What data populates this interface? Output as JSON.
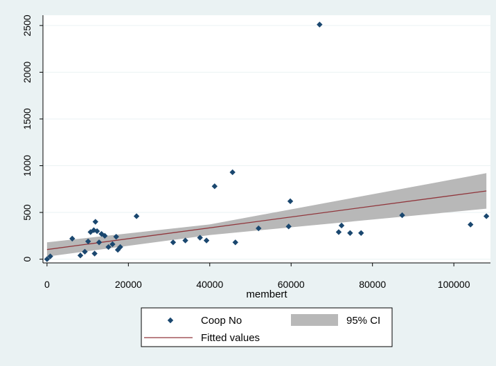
{
  "chart_data": {
    "type": "scatter",
    "title": "",
    "xlabel": "membert",
    "ylabel": "",
    "xlim": [
      -1000,
      109000
    ],
    "ylim": [
      -40,
      2610
    ],
    "x_ticks": [
      0,
      20000,
      40000,
      60000,
      80000,
      100000
    ],
    "y_ticks": [
      0,
      500,
      1000,
      1500,
      2000,
      2500
    ],
    "grid": true,
    "legend_position": "bottom",
    "series": [
      {
        "name": "Coop No",
        "kind": "scatter",
        "marker": "diamond",
        "color": "#1a476f",
        "points": [
          {
            "x": 0,
            "y": 0
          },
          {
            "x": 800,
            "y": 30
          },
          {
            "x": 6200,
            "y": 220
          },
          {
            "x": 8200,
            "y": 40
          },
          {
            "x": 9300,
            "y": 80
          },
          {
            "x": 10100,
            "y": 190
          },
          {
            "x": 10700,
            "y": 290
          },
          {
            "x": 11500,
            "y": 310
          },
          {
            "x": 11700,
            "y": 60
          },
          {
            "x": 11900,
            "y": 400
          },
          {
            "x": 12300,
            "y": 300
          },
          {
            "x": 12800,
            "y": 180
          },
          {
            "x": 13400,
            "y": 270
          },
          {
            "x": 14200,
            "y": 250
          },
          {
            "x": 15100,
            "y": 130
          },
          {
            "x": 16100,
            "y": 160
          },
          {
            "x": 17000,
            "y": 240
          },
          {
            "x": 17400,
            "y": 100
          },
          {
            "x": 18000,
            "y": 130
          },
          {
            "x": 22000,
            "y": 460
          },
          {
            "x": 31000,
            "y": 180
          },
          {
            "x": 34000,
            "y": 200
          },
          {
            "x": 37600,
            "y": 230
          },
          {
            "x": 39200,
            "y": 200
          },
          {
            "x": 41200,
            "y": 780
          },
          {
            "x": 45600,
            "y": 930
          },
          {
            "x": 46300,
            "y": 180
          },
          {
            "x": 52000,
            "y": 330
          },
          {
            "x": 59400,
            "y": 350
          },
          {
            "x": 59800,
            "y": 620
          },
          {
            "x": 67000,
            "y": 2510
          },
          {
            "x": 71700,
            "y": 290
          },
          {
            "x": 72400,
            "y": 360
          },
          {
            "x": 74500,
            "y": 280
          },
          {
            "x": 77200,
            "y": 280
          },
          {
            "x": 87300,
            "y": 470
          },
          {
            "x": 104100,
            "y": 370
          },
          {
            "x": 108000,
            "y": 460
          }
        ]
      },
      {
        "name": "95% CI",
        "kind": "band",
        "color": "#b8b8b8",
        "points": [
          {
            "x": 0,
            "lower": 28,
            "upper": 180
          },
          {
            "x": 40000,
            "lower": 258,
            "upper": 372
          },
          {
            "x": 108000,
            "lower": 540,
            "upper": 920
          }
        ]
      },
      {
        "name": "Fitted values",
        "kind": "line",
        "color": "#90353b",
        "points": [
          {
            "x": 0,
            "y": 103
          },
          {
            "x": 108000,
            "y": 730
          }
        ]
      }
    ]
  }
}
